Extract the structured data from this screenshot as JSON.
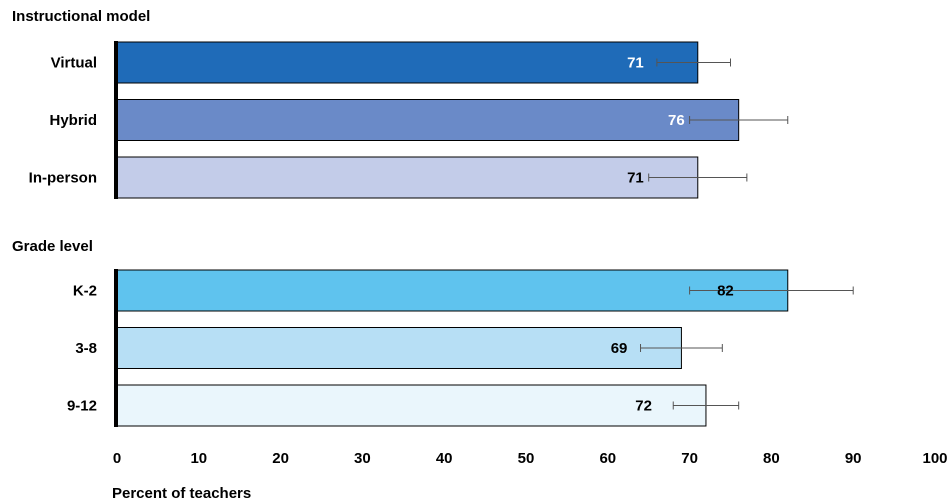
{
  "chart_data": {
    "type": "bar",
    "orientation": "horizontal",
    "xlabel": "Percent of teachers",
    "xlim": [
      0,
      100
    ],
    "x_ticks": [
      0,
      10,
      20,
      30,
      40,
      50,
      60,
      70,
      80,
      90,
      100
    ],
    "groups": [
      {
        "title": "Instructional model",
        "bars": [
          {
            "label": "Virtual",
            "value": 71,
            "err_low": 66,
            "err_high": 75,
            "color": "#1f6bb8",
            "label_color": "#ffffff"
          },
          {
            "label": "Hybrid",
            "value": 76,
            "err_low": 70,
            "err_high": 82,
            "color": "#6a8ac8",
            "label_color": "#ffffff"
          },
          {
            "label": "In-person",
            "value": 71,
            "err_low": 65,
            "err_high": 77,
            "color": "#c3cce9",
            "label_color": "#000000"
          }
        ]
      },
      {
        "title": "Grade level",
        "bars": [
          {
            "label": "K-2",
            "value": 82,
            "err_low": 70,
            "err_high": 90,
            "color": "#5fc3ee",
            "label_color": "#000000"
          },
          {
            "label": "3-8",
            "value": 69,
            "err_low": 64,
            "err_high": 74,
            "color": "#b7dff5",
            "label_color": "#000000"
          },
          {
            "label": "9-12",
            "value": 72,
            "err_low": 68,
            "err_high": 76,
            "color": "#eaf6fc",
            "label_color": "#000000"
          }
        ]
      }
    ]
  }
}
